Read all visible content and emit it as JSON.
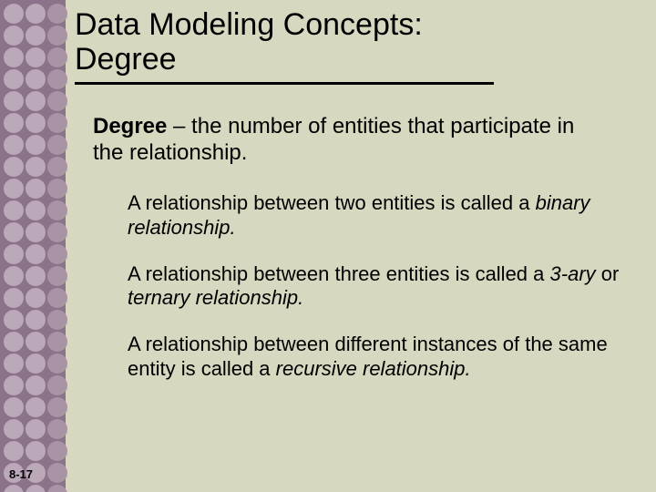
{
  "slide": {
    "background_color": "#d8d7bf",
    "sidebar_color": "#8b7389",
    "title_lines": [
      "Data Modeling Concepts:",
      "Degree"
    ],
    "title_fontsize": 34,
    "underline_color": "#000000",
    "definition": {
      "term": "Degree",
      "rest": " – the number of entities that participate in the relationship.",
      "fontsize": 24
    },
    "bullets": [
      {
        "pre": "A relationship between two entities is called a ",
        "em": "binary relationship.",
        "post": ""
      },
      {
        "pre": "A relationship between three entities is called a ",
        "em": "3-ary",
        "mid": " or ",
        "em2": "ternary relationship.",
        "post": ""
      },
      {
        "pre": "A relationship between different instances of the same entity is called a ",
        "em": "recursive relationship.",
        "post": ""
      }
    ],
    "bullet_fontsize": 22,
    "page_number": "8-17",
    "dots": {
      "cols": [
        4,
        28,
        52
      ],
      "row_start": 4,
      "row_step": 24,
      "row_count": 23,
      "color_left": "#bba8b8",
      "color_right": "#a994a6"
    }
  }
}
